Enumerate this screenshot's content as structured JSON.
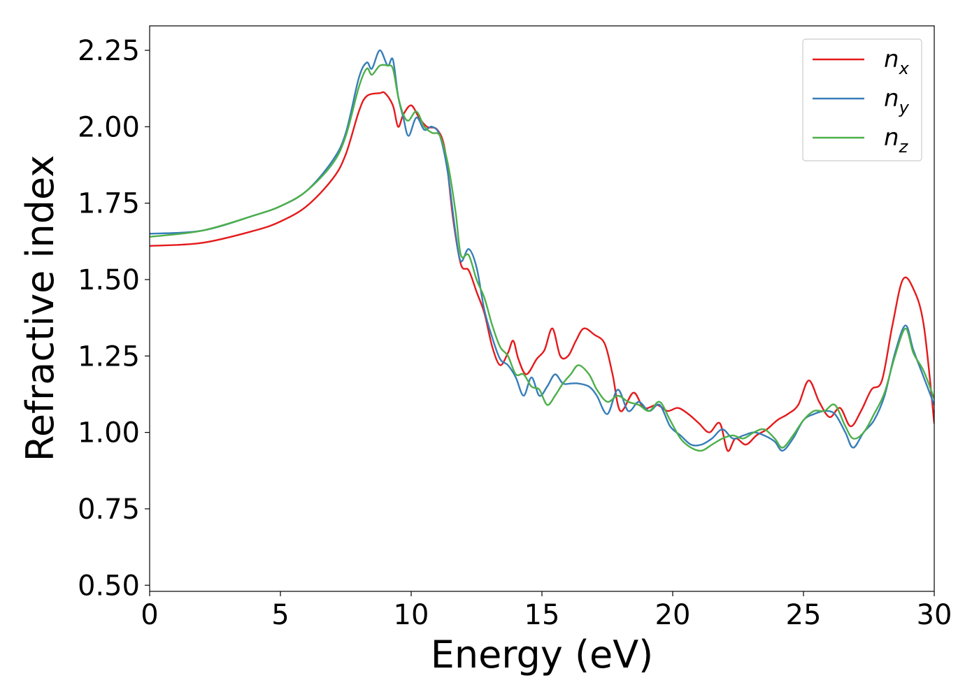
{
  "chart_data": {
    "type": "line",
    "title": "",
    "xlabel": "Energy (eV)",
    "ylabel": "Refractive index",
    "xlim": [
      0,
      30
    ],
    "ylim": [
      0.48,
      2.33
    ],
    "xticks": [
      0,
      5,
      10,
      15,
      20,
      25,
      30
    ],
    "xtick_labels": [
      "0",
      "5",
      "10",
      "15",
      "20",
      "25",
      "30"
    ],
    "yticks": [
      0.5,
      0.75,
      1.0,
      1.25,
      1.5,
      1.75,
      2.0,
      2.25
    ],
    "ytick_labels": [
      "0.50",
      "0.75",
      "1.00",
      "1.25",
      "1.50",
      "1.75",
      "2.00",
      "2.25"
    ],
    "grid": false,
    "legend_position": "top-right",
    "series": [
      {
        "name": "n_x",
        "label_base": "n",
        "label_sub": "x",
        "color": "#e41a1c",
        "points": [
          [
            0,
            1.61
          ],
          [
            2,
            1.62
          ],
          [
            4,
            1.66
          ],
          [
            5,
            1.69
          ],
          [
            6,
            1.74
          ],
          [
            7,
            1.83
          ],
          [
            7.5,
            1.91
          ],
          [
            8,
            2.05
          ],
          [
            8.3,
            2.1
          ],
          [
            8.8,
            2.11
          ],
          [
            9.0,
            2.11
          ],
          [
            9.3,
            2.07
          ],
          [
            9.5,
            2.0
          ],
          [
            9.7,
            2.04
          ],
          [
            10.0,
            2.07
          ],
          [
            10.3,
            2.03
          ],
          [
            10.6,
            2.0
          ],
          [
            11.0,
            1.99
          ],
          [
            11.3,
            1.92
          ],
          [
            11.6,
            1.7
          ],
          [
            11.9,
            1.55
          ],
          [
            12.2,
            1.53
          ],
          [
            12.5,
            1.46
          ],
          [
            12.8,
            1.39
          ],
          [
            13.1,
            1.28
          ],
          [
            13.4,
            1.22
          ],
          [
            13.7,
            1.26
          ],
          [
            13.9,
            1.3
          ],
          [
            14.1,
            1.24
          ],
          [
            14.4,
            1.19
          ],
          [
            14.8,
            1.24
          ],
          [
            15.1,
            1.27
          ],
          [
            15.4,
            1.34
          ],
          [
            15.7,
            1.25
          ],
          [
            16.0,
            1.25
          ],
          [
            16.3,
            1.3
          ],
          [
            16.6,
            1.34
          ],
          [
            17.0,
            1.32
          ],
          [
            17.4,
            1.29
          ],
          [
            17.7,
            1.19
          ],
          [
            18.0,
            1.07
          ],
          [
            18.5,
            1.13
          ],
          [
            18.9,
            1.08
          ],
          [
            19.4,
            1.09
          ],
          [
            19.8,
            1.07
          ],
          [
            20.2,
            1.08
          ],
          [
            20.6,
            1.06
          ],
          [
            21.0,
            1.03
          ],
          [
            21.4,
            1.0
          ],
          [
            21.8,
            1.03
          ],
          [
            22.1,
            0.94
          ],
          [
            22.4,
            0.98
          ],
          [
            22.8,
            0.96
          ],
          [
            23.2,
            0.99
          ],
          [
            23.6,
            1.01
          ],
          [
            24.0,
            1.04
          ],
          [
            24.4,
            1.06
          ],
          [
            24.8,
            1.09
          ],
          [
            25.2,
            1.17
          ],
          [
            25.6,
            1.1
          ],
          [
            26.0,
            1.05
          ],
          [
            26.4,
            1.08
          ],
          [
            26.8,
            1.02
          ],
          [
            27.2,
            1.07
          ],
          [
            27.6,
            1.14
          ],
          [
            28.0,
            1.17
          ],
          [
            28.4,
            1.35
          ],
          [
            28.8,
            1.5
          ],
          [
            29.2,
            1.47
          ],
          [
            29.6,
            1.35
          ],
          [
            30,
            1.03
          ]
        ]
      },
      {
        "name": "n_y",
        "label_base": "n",
        "label_sub": "y",
        "color": "#377eb8",
        "points": [
          [
            0,
            1.65
          ],
          [
            2,
            1.66
          ],
          [
            4,
            1.71
          ],
          [
            5,
            1.74
          ],
          [
            6,
            1.79
          ],
          [
            7,
            1.89
          ],
          [
            7.5,
            1.98
          ],
          [
            8,
            2.16
          ],
          [
            8.3,
            2.21
          ],
          [
            8.5,
            2.19
          ],
          [
            8.8,
            2.25
          ],
          [
            9.1,
            2.2
          ],
          [
            9.3,
            2.22
          ],
          [
            9.5,
            2.1
          ],
          [
            9.7,
            2.03
          ],
          [
            9.9,
            1.97
          ],
          [
            10.2,
            2.03
          ],
          [
            10.5,
            1.99
          ],
          [
            10.8,
            2.0
          ],
          [
            11.1,
            1.97
          ],
          [
            11.4,
            1.85
          ],
          [
            11.7,
            1.65
          ],
          [
            11.9,
            1.56
          ],
          [
            12.2,
            1.6
          ],
          [
            12.5,
            1.54
          ],
          [
            12.8,
            1.4
          ],
          [
            13.1,
            1.31
          ],
          [
            13.4,
            1.24
          ],
          [
            13.7,
            1.22
          ],
          [
            14.0,
            1.18
          ],
          [
            14.3,
            1.12
          ],
          [
            14.6,
            1.18
          ],
          [
            14.9,
            1.12
          ],
          [
            15.2,
            1.15
          ],
          [
            15.5,
            1.19
          ],
          [
            15.8,
            1.16
          ],
          [
            16.1,
            1.16
          ],
          [
            16.4,
            1.16
          ],
          [
            16.8,
            1.15
          ],
          [
            17.1,
            1.12
          ],
          [
            17.5,
            1.06
          ],
          [
            17.9,
            1.14
          ],
          [
            18.3,
            1.07
          ],
          [
            18.7,
            1.1
          ],
          [
            19.1,
            1.07
          ],
          [
            19.5,
            1.09
          ],
          [
            19.9,
            1.02
          ],
          [
            20.3,
            0.99
          ],
          [
            20.7,
            0.96
          ],
          [
            21.1,
            0.96
          ],
          [
            21.5,
            0.98
          ],
          [
            21.9,
            1.01
          ],
          [
            22.3,
            0.98
          ],
          [
            22.7,
            0.99
          ],
          [
            23.1,
            1.0
          ],
          [
            23.5,
            0.99
          ],
          [
            23.9,
            0.97
          ],
          [
            24.2,
            0.94
          ],
          [
            24.6,
            0.98
          ],
          [
            25.0,
            1.04
          ],
          [
            25.4,
            1.06
          ],
          [
            25.8,
            1.07
          ],
          [
            26.2,
            1.06
          ],
          [
            26.6,
            1.0
          ],
          [
            26.9,
            0.95
          ],
          [
            27.3,
            1.0
          ],
          [
            27.7,
            1.04
          ],
          [
            28.1,
            1.12
          ],
          [
            28.5,
            1.26
          ],
          [
            28.9,
            1.35
          ],
          [
            29.2,
            1.27
          ],
          [
            29.6,
            1.18
          ],
          [
            30,
            1.09
          ]
        ]
      },
      {
        "name": "n_z",
        "label_base": "n",
        "label_sub": "z",
        "color": "#4daf4a",
        "points": [
          [
            0,
            1.64
          ],
          [
            2,
            1.66
          ],
          [
            4,
            1.71
          ],
          [
            5,
            1.74
          ],
          [
            6,
            1.79
          ],
          [
            7,
            1.88
          ],
          [
            7.5,
            1.97
          ],
          [
            8,
            2.13
          ],
          [
            8.3,
            2.19
          ],
          [
            8.5,
            2.17
          ],
          [
            8.8,
            2.2
          ],
          [
            9.1,
            2.2
          ],
          [
            9.3,
            2.19
          ],
          [
            9.5,
            2.1
          ],
          [
            9.7,
            2.04
          ],
          [
            9.9,
            2.02
          ],
          [
            10.2,
            2.05
          ],
          [
            10.5,
            2.0
          ],
          [
            10.8,
            1.98
          ],
          [
            11.1,
            1.97
          ],
          [
            11.4,
            1.88
          ],
          [
            11.7,
            1.72
          ],
          [
            11.9,
            1.58
          ],
          [
            12.2,
            1.58
          ],
          [
            12.5,
            1.5
          ],
          [
            12.8,
            1.44
          ],
          [
            13.1,
            1.35
          ],
          [
            13.4,
            1.28
          ],
          [
            13.7,
            1.25
          ],
          [
            14.0,
            1.19
          ],
          [
            14.3,
            1.19
          ],
          [
            14.6,
            1.15
          ],
          [
            14.9,
            1.14
          ],
          [
            15.2,
            1.09
          ],
          [
            15.5,
            1.12
          ],
          [
            15.8,
            1.16
          ],
          [
            16.1,
            1.19
          ],
          [
            16.4,
            1.22
          ],
          [
            16.8,
            1.19
          ],
          [
            17.1,
            1.14
          ],
          [
            17.5,
            1.1
          ],
          [
            17.9,
            1.12
          ],
          [
            18.3,
            1.1
          ],
          [
            18.7,
            1.09
          ],
          [
            19.1,
            1.07
          ],
          [
            19.5,
            1.1
          ],
          [
            19.9,
            1.04
          ],
          [
            20.3,
            0.98
          ],
          [
            20.7,
            0.95
          ],
          [
            21.1,
            0.94
          ],
          [
            21.5,
            0.96
          ],
          [
            21.9,
            0.98
          ],
          [
            22.3,
            0.99
          ],
          [
            22.7,
            0.98
          ],
          [
            23.1,
            1.0
          ],
          [
            23.5,
            1.01
          ],
          [
            23.9,
            0.98
          ],
          [
            24.2,
            0.95
          ],
          [
            24.6,
            0.99
          ],
          [
            25.0,
            1.04
          ],
          [
            25.4,
            1.07
          ],
          [
            25.8,
            1.07
          ],
          [
            26.2,
            1.09
          ],
          [
            26.6,
            1.02
          ],
          [
            26.9,
            0.98
          ],
          [
            27.3,
            1.0
          ],
          [
            27.7,
            1.06
          ],
          [
            28.1,
            1.13
          ],
          [
            28.5,
            1.25
          ],
          [
            28.9,
            1.34
          ],
          [
            29.2,
            1.26
          ],
          [
            29.6,
            1.2
          ],
          [
            30,
            1.11
          ]
        ]
      }
    ]
  }
}
